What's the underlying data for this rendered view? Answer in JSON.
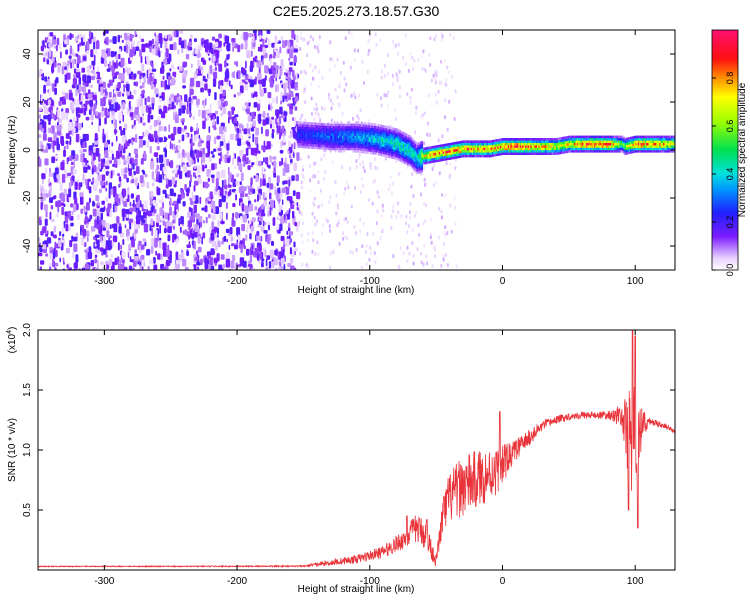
{
  "title": "C2E5.2025.273.18.57.G30",
  "chart_data": [
    {
      "type": "heatmap",
      "title": "C2E5.2025.273.18.57.G30",
      "xlabel": "Height of straight line (km)",
      "ylabel": "Frequency (Hz)",
      "xlim": [
        -350,
        130
      ],
      "ylim": [
        -50,
        50
      ],
      "x_ticks": [
        -300,
        -200,
        -100,
        0,
        100
      ],
      "y_ticks": [
        -40,
        -20,
        0,
        20,
        40
      ],
      "colorbar": {
        "label": "Normalized spectral amplitude",
        "range": [
          0,
          1
        ],
        "ticks": [
          0.0,
          0.2,
          0.4,
          0.6,
          0.8
        ],
        "colormap": "white-purple-blue-cyan-green-yellow-red-magenta"
      },
      "ridge": {
        "x": [
          -155,
          -130,
          -110,
          -95,
          -80,
          -70,
          -65,
          -60,
          -50,
          -40,
          -30,
          -20,
          -10,
          0,
          10,
          20,
          30,
          40,
          50,
          60,
          70,
          80,
          90,
          92,
          100,
          110,
          120,
          130
        ],
        "y": [
          7,
          6,
          6,
          5,
          3,
          0,
          -3,
          -2,
          -1,
          0,
          1,
          1,
          1,
          2,
          2,
          2,
          2,
          2,
          3,
          3,
          3,
          3,
          3,
          2,
          3,
          3,
          3,
          3
        ],
        "amplitude": [
          0.25,
          0.3,
          0.35,
          0.4,
          0.45,
          0.45,
          0.4,
          0.7,
          0.85,
          0.9,
          0.85,
          0.8,
          0.8,
          0.85,
          0.9,
          0.9,
          0.8,
          0.7,
          0.75,
          0.85,
          0.9,
          0.9,
          0.5,
          0.6,
          0.85,
          0.85,
          0.8,
          0.65
        ]
      },
      "noise_region": {
        "x_range": [
          -350,
          -155
        ],
        "amplitude": 0.15,
        "y_range": [
          -50,
          50
        ]
      }
    },
    {
      "type": "line",
      "xlabel": "Height of straight line (km)",
      "ylabel": "SNR (10 * v/v)",
      "y_multiplier_label": "(x10",
      "y_multiplier_exp": "4",
      "y_multiplier_close": ")",
      "xlim": [
        -350,
        130
      ],
      "ylim": [
        0,
        20000
      ],
      "x_ticks": [
        -300,
        -200,
        -100,
        0,
        100
      ],
      "y_ticks": [
        0.5,
        1.0,
        1.5,
        2.0
      ],
      "y_tick_scale": 10000,
      "series": [
        {
          "color": "#e8343a",
          "envelope_x": [
            -350,
            -250,
            -150,
            -130,
            -110,
            -90,
            -75,
            -65,
            -58,
            -50,
            -45,
            -40,
            -30,
            -20,
            -10,
            -5,
            0,
            10,
            20,
            30,
            40,
            50,
            60,
            70,
            80,
            90,
            95,
            100,
            105,
            110,
            120,
            130
          ],
          "envelope_y": [
            300,
            300,
            320,
            600,
            900,
            1500,
            2500,
            3500,
            3000,
            700,
            4500,
            6000,
            7000,
            7500,
            8000,
            8200,
            8800,
            10000,
            11000,
            12000,
            12500,
            12800,
            12900,
            12900,
            12900,
            12800,
            11000,
            10500,
            12000,
            12400,
            12100,
            11500
          ],
          "noise_amp": [
            40,
            40,
            60,
            250,
            350,
            500,
            800,
            1200,
            1300,
            500,
            1600,
            2200,
            2500,
            2500,
            2200,
            2000,
            1600,
            900,
            700,
            450,
            350,
            300,
            300,
            300,
            350,
            900,
            4000,
            5000,
            1500,
            300,
            250,
            200
          ],
          "spikes": [
            {
              "x": -72,
              "y": 4500
            },
            {
              "x": -57,
              "y": 4200
            },
            {
              "x": -2,
              "y": 13200
            },
            {
              "x": 98,
              "y": 20000
            },
            {
              "x": 100,
              "y": 19500
            },
            {
              "x": 102,
              "y": 3500
            },
            {
              "x": 95,
              "y": 5000
            }
          ]
        }
      ]
    }
  ]
}
